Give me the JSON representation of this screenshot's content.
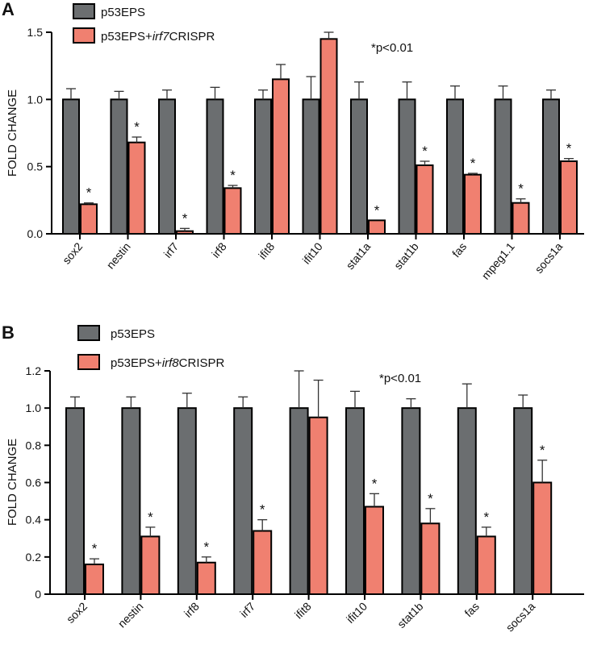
{
  "chart_data": [
    {
      "panel": "A",
      "type": "bar",
      "ylabel": "FOLD CHANGE",
      "ylim": [
        0,
        1.5
      ],
      "yticks": [
        0.0,
        0.5,
        1.0,
        1.5
      ],
      "ytick_labels": [
        "0.0",
        "0.5",
        "1.0",
        "1.5"
      ],
      "significance_note": "*p<0.01",
      "legend": [
        {
          "label": "p53EPS",
          "color": "#6b6e70"
        },
        {
          "label_prefix": "p53EPS+",
          "label_italic": "irf7",
          "label_suffix": "CRISPR",
          "color": "#f08070"
        }
      ],
      "categories": [
        "sox2",
        "nestin",
        "irf7",
        "irf8",
        "ifit8",
        "ifit10",
        "stat1a",
        "stat1b",
        "fas",
        "mpeg1.1",
        "socs1a"
      ],
      "series": [
        {
          "name": "p53EPS",
          "color": "#6b6e70",
          "values": [
            1.0,
            1.0,
            1.0,
            1.0,
            1.0,
            1.0,
            1.0,
            1.0,
            1.0,
            1.0,
            1.0
          ],
          "errors": [
            0.08,
            0.06,
            0.07,
            0.09,
            0.07,
            0.17,
            0.13,
            0.13,
            0.1,
            0.1,
            0.07
          ],
          "significant": [
            false,
            false,
            false,
            false,
            false,
            false,
            false,
            false,
            false,
            false,
            false
          ]
        },
        {
          "name": "p53EPS+irf7CRISPR",
          "color": "#f08070",
          "values": [
            0.22,
            0.68,
            0.02,
            0.34,
            1.15,
            1.45,
            0.1,
            0.51,
            0.44,
            0.23,
            0.54
          ],
          "errors": [
            0.01,
            0.04,
            0.02,
            0.02,
            0.11,
            0.05,
            0.0,
            0.03,
            0.01,
            0.03,
            0.02
          ],
          "significant": [
            true,
            true,
            true,
            true,
            false,
            false,
            true,
            true,
            true,
            true,
            true
          ]
        }
      ]
    },
    {
      "panel": "B",
      "type": "bar",
      "ylabel": "FOLD CHANGE",
      "ylim": [
        0,
        1.2
      ],
      "yticks": [
        0,
        0.2,
        0.4,
        0.6,
        0.8,
        1.0,
        1.2
      ],
      "ytick_labels": [
        "0",
        "0.2",
        "0.4",
        "0.6",
        "0.8",
        "1.0",
        "1.2"
      ],
      "significance_note": "*p<0.01",
      "legend": [
        {
          "label": "p53EPS",
          "color": "#6b6e70"
        },
        {
          "label_prefix": "p53EPS+",
          "label_italic": "irf8",
          "label_suffix": "CRISPR",
          "color": "#f08070"
        }
      ],
      "categories": [
        "sox2",
        "nestin",
        "irf8",
        "irf7",
        "ifit8",
        "ifit10",
        "stat1b",
        "fas",
        "socs1a"
      ],
      "series": [
        {
          "name": "p53EPS",
          "color": "#6b6e70",
          "values": [
            1.0,
            1.0,
            1.0,
            1.0,
            1.0,
            1.0,
            1.0,
            1.0,
            1.0
          ],
          "errors": [
            0.06,
            0.06,
            0.08,
            0.06,
            0.2,
            0.09,
            0.05,
            0.13,
            0.07
          ],
          "significant": [
            false,
            false,
            false,
            false,
            false,
            false,
            false,
            false,
            false
          ]
        },
        {
          "name": "p53EPS+irf8CRISPR",
          "color": "#f08070",
          "values": [
            0.16,
            0.31,
            0.17,
            0.34,
            0.95,
            0.47,
            0.38,
            0.31,
            0.6
          ],
          "errors": [
            0.03,
            0.05,
            0.03,
            0.06,
            0.2,
            0.07,
            0.08,
            0.05,
            0.12
          ],
          "significant": [
            true,
            true,
            true,
            true,
            false,
            true,
            true,
            true,
            true
          ]
        }
      ]
    }
  ]
}
